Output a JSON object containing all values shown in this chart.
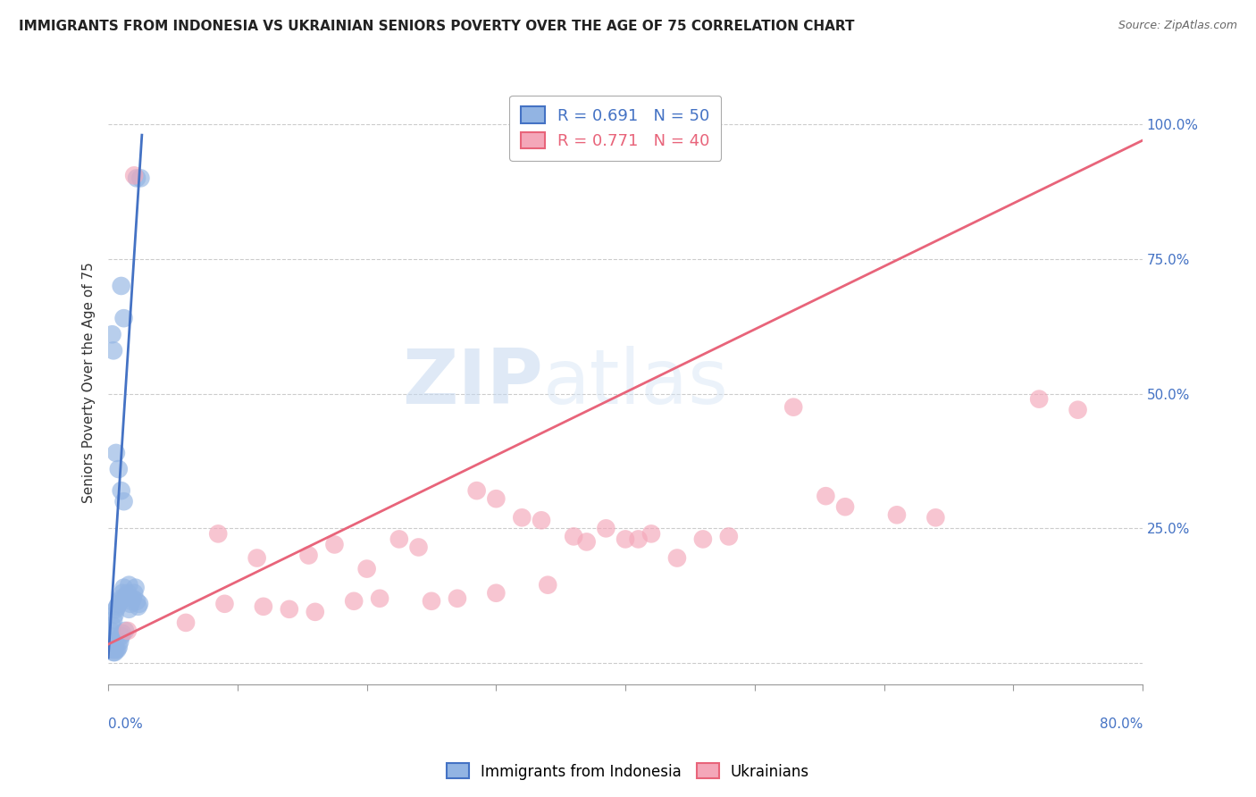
{
  "title": "IMMIGRANTS FROM INDONESIA VS UKRAINIAN SENIORS POVERTY OVER THE AGE OF 75 CORRELATION CHART",
  "source": "Source: ZipAtlas.com",
  "ylabel": "Seniors Poverty Over the Age of 75",
  "yticks": [
    0.0,
    0.25,
    0.5,
    0.75,
    1.0
  ],
  "ytick_labels": [
    "",
    "25.0%",
    "50.0%",
    "75.0%",
    "100.0%"
  ],
  "xlim": [
    0.0,
    0.8
  ],
  "ylim": [
    -0.04,
    1.08
  ],
  "watermark_zip": "ZIP",
  "watermark_atlas": "atlas",
  "legend_R_blue": "R = 0.691",
  "legend_N_blue": "N = 50",
  "legend_R_pink": "R = 0.771",
  "legend_N_pink": "N = 40",
  "label_blue": "Immigrants from Indonesia",
  "label_pink": "Ukrainians",
  "blue_color": "#92b4e3",
  "blue_line_color": "#4472c4",
  "pink_color": "#f4a7b9",
  "pink_line_color": "#e8647a",
  "blue_scatter_x": [
    0.022,
    0.025,
    0.01,
    0.012,
    0.003,
    0.004,
    0.006,
    0.008,
    0.01,
    0.012,
    0.001,
    0.002,
    0.003,
    0.004,
    0.005,
    0.006,
    0.007,
    0.008,
    0.009,
    0.01,
    0.011,
    0.012,
    0.013,
    0.014,
    0.015,
    0.016,
    0.017,
    0.018,
    0.019,
    0.02,
    0.021,
    0.022,
    0.023,
    0.024,
    0.001,
    0.002,
    0.003,
    0.003,
    0.004,
    0.004,
    0.005,
    0.005,
    0.006,
    0.007,
    0.008,
    0.009,
    0.01,
    0.011,
    0.013,
    0.016
  ],
  "blue_scatter_y": [
    0.9,
    0.9,
    0.7,
    0.64,
    0.61,
    0.58,
    0.39,
    0.36,
    0.32,
    0.3,
    0.05,
    0.06,
    0.07,
    0.08,
    0.09,
    0.1,
    0.105,
    0.11,
    0.115,
    0.12,
    0.13,
    0.14,
    0.12,
    0.125,
    0.13,
    0.145,
    0.11,
    0.115,
    0.12,
    0.13,
    0.14,
    0.115,
    0.105,
    0.11,
    0.04,
    0.035,
    0.03,
    0.025,
    0.02,
    0.025,
    0.02,
    0.03,
    0.025,
    0.025,
    0.03,
    0.04,
    0.05,
    0.055,
    0.06,
    0.1
  ],
  "pink_scatter_x": [
    0.02,
    0.085,
    0.115,
    0.155,
    0.175,
    0.2,
    0.225,
    0.24,
    0.285,
    0.3,
    0.32,
    0.335,
    0.36,
    0.37,
    0.385,
    0.4,
    0.41,
    0.42,
    0.44,
    0.46,
    0.48,
    0.53,
    0.555,
    0.57,
    0.61,
    0.64,
    0.72,
    0.75,
    0.015,
    0.06,
    0.09,
    0.12,
    0.14,
    0.16,
    0.19,
    0.21,
    0.25,
    0.27,
    0.3,
    0.34
  ],
  "pink_scatter_y": [
    0.905,
    0.24,
    0.195,
    0.2,
    0.22,
    0.175,
    0.23,
    0.215,
    0.32,
    0.305,
    0.27,
    0.265,
    0.235,
    0.225,
    0.25,
    0.23,
    0.23,
    0.24,
    0.195,
    0.23,
    0.235,
    0.475,
    0.31,
    0.29,
    0.275,
    0.27,
    0.49,
    0.47,
    0.06,
    0.075,
    0.11,
    0.105,
    0.1,
    0.095,
    0.115,
    0.12,
    0.115,
    0.12,
    0.13,
    0.145
  ],
  "blue_line_x": [
    0.0,
    0.026
  ],
  "blue_line_y": [
    0.01,
    0.98
  ],
  "pink_line_x": [
    0.0,
    0.8
  ],
  "pink_line_y": [
    0.035,
    0.97
  ],
  "grid_color": "#cccccc",
  "background_color": "#ffffff",
  "title_fontsize": 11,
  "axis_label_fontsize": 11,
  "tick_fontsize": 11,
  "legend_fontsize": 13
}
